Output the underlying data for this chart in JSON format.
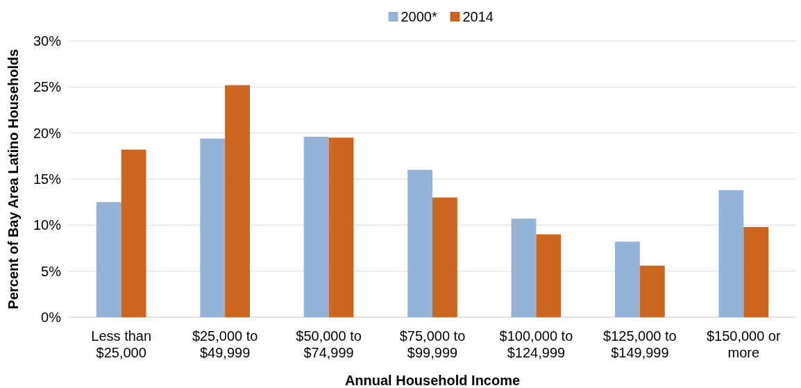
{
  "chart_data": {
    "type": "bar",
    "xlabel": "Annual Household Income",
    "ylabel": "Percent of Bay Area Latino Households",
    "categories": [
      "Less than $25,000",
      "$25,000 to $49,999",
      "$50,000 to $74,999",
      "$75,000 to $99,999",
      "$100,000 to $124,999",
      "$125,000 to $149,999",
      "$150,000 or more"
    ],
    "series": [
      {
        "name": "2000*",
        "color": "#95b3d7",
        "values": [
          12.5,
          19.4,
          19.6,
          16.0,
          10.7,
          8.2,
          13.8
        ]
      },
      {
        "name": "2014",
        "color": "#cc661f",
        "values": [
          18.2,
          25.2,
          19.5,
          13.0,
          9.0,
          5.6,
          9.8
        ]
      }
    ],
    "ylim": [
      0,
      30
    ],
    "yticks": [
      {
        "value": 0,
        "label": "0%"
      },
      {
        "value": 5,
        "label": "5%"
      },
      {
        "value": 10,
        "label": "10%"
      },
      {
        "value": 15,
        "label": "15%"
      },
      {
        "value": 20,
        "label": "20%"
      },
      {
        "value": 25,
        "label": "25%"
      },
      {
        "value": 30,
        "label": "30%"
      }
    ],
    "grid": "y",
    "legend": "top"
  }
}
